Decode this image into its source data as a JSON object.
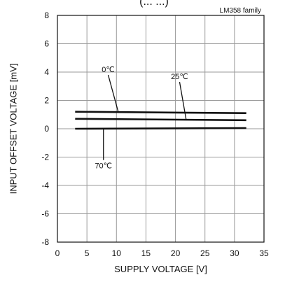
{
  "header_fragment": "(... ...)",
  "chart_data": {
    "type": "line",
    "title": "",
    "corner_label": "LM358 family",
    "xlabel": "SUPPLY VOLTAGE [V]",
    "ylabel": "INPUT OFFSET VOLTAGE [mV]",
    "xlim": [
      0,
      35
    ],
    "ylim": [
      -8,
      8
    ],
    "x_ticks": [
      0,
      5,
      10,
      15,
      20,
      25,
      30,
      35
    ],
    "y_ticks": [
      -8,
      -6,
      -4,
      -2,
      0,
      2,
      4,
      6,
      8
    ],
    "grid": true,
    "legend": "none",
    "line_color": "#111111",
    "series": [
      {
        "name": "0℃",
        "x": [
          3,
          32
        ],
        "y": [
          1.2,
          1.1
        ]
      },
      {
        "name": "25℃",
        "x": [
          3,
          32
        ],
        "y": [
          0.7,
          0.6
        ]
      },
      {
        "name": "70℃",
        "x": [
          3,
          32
        ],
        "y": [
          0.0,
          0.05
        ]
      }
    ],
    "annotations": [
      {
        "text": "0℃",
        "series": 0,
        "point": [
          10.3,
          1.2
        ],
        "text_at": [
          8.6,
          4.0
        ]
      },
      {
        "text": "25℃",
        "series": 1,
        "point": [
          21.8,
          0.67
        ],
        "text_at": [
          20.7,
          3.5
        ]
      },
      {
        "text": "70℃",
        "series": 2,
        "point": [
          7.8,
          0.02
        ],
        "text_at": [
          7.8,
          -2.8
        ]
      }
    ]
  }
}
